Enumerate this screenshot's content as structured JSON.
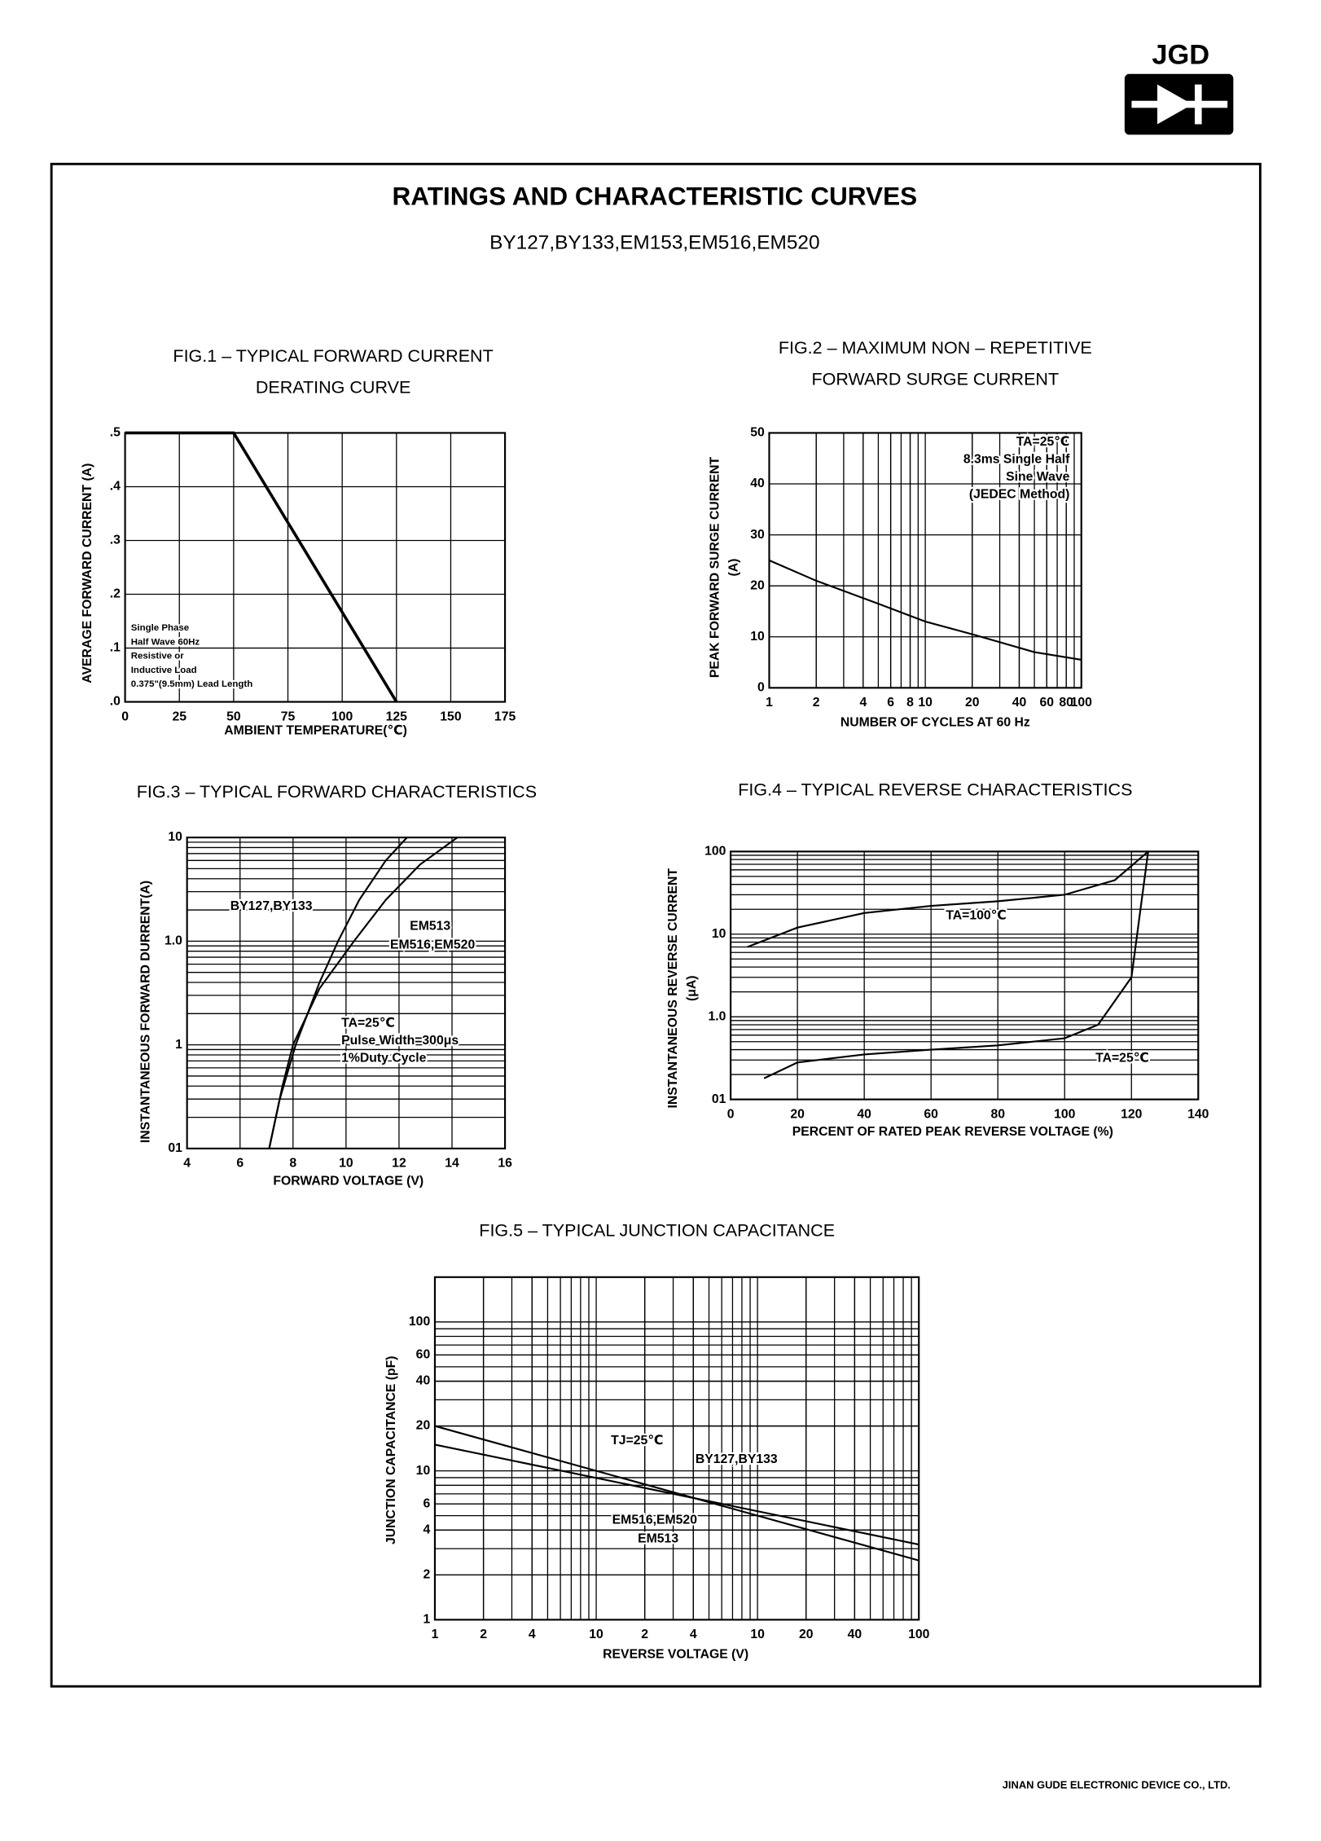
{
  "logo": "JGD",
  "header": {
    "title": "RATINGS AND CHARACTERISTIC CURVES",
    "subtitle": "BY127,BY133,EM153,EM516,EM520"
  },
  "footer": "JINAN GUDE ELECTRONIC DEVICE CO., LTD.",
  "chart_data": [
    {
      "type": "line",
      "title": [
        "FIG.1 – TYPICAL FORWARD CURRENT",
        "DERATING CURVE"
      ],
      "x_label": "AMBIENT TEMPERATURE(℃)",
      "y_label": [
        "AVERAGE FORWARD CURRENT (A)"
      ],
      "xlim": [
        0,
        175
      ],
      "ylim": [
        0,
        0.5
      ],
      "xlog": false,
      "ylog": false,
      "grid": true,
      "xticks": [
        0,
        25,
        50,
        75,
        100,
        125,
        150,
        175
      ],
      "yticks": [
        {
          "value": 0,
          "label": ".0"
        },
        {
          "value": 0.1,
          "label": ".1"
        },
        {
          "value": 0.2,
          "label": ".2"
        },
        {
          "value": 0.3,
          "label": ".3"
        },
        {
          "value": 0.4,
          "label": ".4"
        },
        {
          "value": 0.5,
          "label": ".5"
        }
      ],
      "series": [
        {
          "color": "#000000",
          "x": [
            0,
            50,
            125
          ],
          "values": [
            0.5,
            0.5,
            0
          ]
        }
      ],
      "annotations": [
        "Single Phase",
        "Half Wave 60Hz",
        "Resistive or",
        "Inductive Load",
        "0.375\"(9.5mm) Lead Length"
      ]
    },
    {
      "type": "line",
      "title": [
        "FIG.2 – MAXIMUM NON – REPETITIVE",
        "FORWARD SURGE CURRENT"
      ],
      "x_label": "NUMBER OF CYCLES AT 60 Hz",
      "y_label": [
        "PEAK FORWARD SURGE CURRENT",
        "(A)"
      ],
      "xlim": [
        1,
        100
      ],
      "ylim": [
        0,
        50
      ],
      "xlog": true,
      "ylog": false,
      "grid": true,
      "xticks": [
        1,
        2,
        4,
        6,
        8,
        10,
        20,
        40,
        60,
        80,
        100
      ],
      "yticks": [
        0,
        10,
        20,
        30,
        40,
        50
      ],
      "series": [
        {
          "color": "#000000",
          "x": [
            1,
            2,
            5,
            10,
            20,
            50,
            100
          ],
          "values": [
            25,
            21,
            16.5,
            13,
            10.5,
            7,
            5.5
          ]
        }
      ],
      "annotations": [
        "TA=25℃",
        "8.3ms Single Half",
        "Sine Wave",
        "(JEDEC Method)"
      ]
    },
    {
      "type": "line",
      "title": [
        "FIG.3 – TYPICAL FORWARD CHARACTERISTICS"
      ],
      "x_label": "FORWARD VOLTAGE (V)",
      "y_label": [
        "INSTANTANEOUS FORWARD DURRENT(A)"
      ],
      "xlim": [
        4,
        16
      ],
      "ylim": [
        0.01,
        10
      ],
      "xlog": false,
      "ylog": true,
      "grid": true,
      "xticks": [
        4,
        6,
        8,
        10,
        12,
        14,
        16
      ],
      "yticks": [
        {
          "value": 0.01,
          "label": "01"
        },
        {
          "value": 0.1,
          "label": "1"
        },
        {
          "value": 1,
          "label": "1.0"
        },
        10
      ],
      "series": [
        {
          "name": "BY127,BY133",
          "color": "#000000",
          "x": [
            7.1,
            7.5,
            8.1,
            9,
            9.7,
            10.5,
            11.5,
            12.3
          ],
          "values": [
            0.01,
            0.03,
            0.1,
            0.4,
            1,
            2.5,
            6,
            10
          ]
        },
        {
          "name": "EM513",
          "color": "#000000",
          "x": [
            7.1,
            7.6,
            8,
            9,
            10.3,
            11.5,
            12.8,
            14.2
          ],
          "values": [
            0.01,
            0.04,
            0.1,
            0.35,
            1,
            2.5,
            5.5,
            10
          ]
        }
      ],
      "annotations": [
        "EM516,EM520",
        "TA=25℃",
        "Pulse Width=300μs",
        "1%Duty Cycle"
      ]
    },
    {
      "type": "line",
      "title": [
        "FIG.4 – TYPICAL REVERSE CHARACTERISTICS"
      ],
      "x_label": "PERCENT OF RATED PEAK REVERSE VOLTAGE (%)",
      "y_label": [
        "INSTANTANEOUS REVERSE CURRENT",
        "(μA)"
      ],
      "xlim": [
        0,
        140
      ],
      "ylim": [
        0.1,
        100
      ],
      "xlog": false,
      "ylog": true,
      "grid": true,
      "xticks": [
        0,
        20,
        40,
        60,
        80,
        100,
        120,
        140
      ],
      "yticks": [
        {
          "value": 0.1,
          "label": "01"
        },
        {
          "value": 1,
          "label": "1.0"
        },
        10,
        100
      ],
      "series": [
        {
          "name": "TA=100℃",
          "color": "#000000",
          "x": [
            5,
            20,
            40,
            60,
            80,
            100,
            115,
            125
          ],
          "values": [
            7,
            12,
            18,
            22,
            25,
            30,
            45,
            100
          ]
        },
        {
          "name": "TA=25℃",
          "color": "#000000",
          "x": [
            10,
            20,
            40,
            60,
            80,
            100,
            110,
            120,
            125
          ],
          "values": [
            0.18,
            0.28,
            0.35,
            0.4,
            0.45,
            0.55,
            0.8,
            3,
            100
          ]
        }
      ],
      "annotations": []
    },
    {
      "type": "line",
      "title": [
        "FIG.5 – TYPICAL JUNCTION CAPACITANCE"
      ],
      "x_label": "REVERSE VOLTAGE (V)",
      "y_label": [
        "JUNCTION CAPACITANCE (pF)"
      ],
      "xlim": [
        1,
        1000
      ],
      "ylim": [
        1,
        200
      ],
      "xlog": true,
      "ylog": true,
      "grid": true,
      "xticks": [
        1,
        2,
        4,
        10,
        {
          "value": 20,
          "label": "2"
        },
        {
          "value": 40,
          "label": "4"
        },
        {
          "value": 100,
          "label": "10"
        },
        {
          "value": 200,
          "label": "20"
        },
        {
          "value": 400,
          "label": "40"
        },
        {
          "value": 1000,
          "label": "100"
        }
      ],
      "yticks": [
        1,
        2,
        4,
        6,
        10,
        20,
        40,
        60,
        100
      ],
      "series": [
        {
          "name": "BY127,BY133",
          "color": "#000000",
          "x": [
            1,
            1000
          ],
          "values": [
            20,
            2.5
          ]
        },
        {
          "name": "EM516,EM520",
          "color": "#000000",
          "x": [
            1,
            1000
          ],
          "values": [
            15,
            3.2
          ]
        }
      ],
      "annotations": [
        "TJ=25℃",
        "EM513"
      ]
    }
  ]
}
